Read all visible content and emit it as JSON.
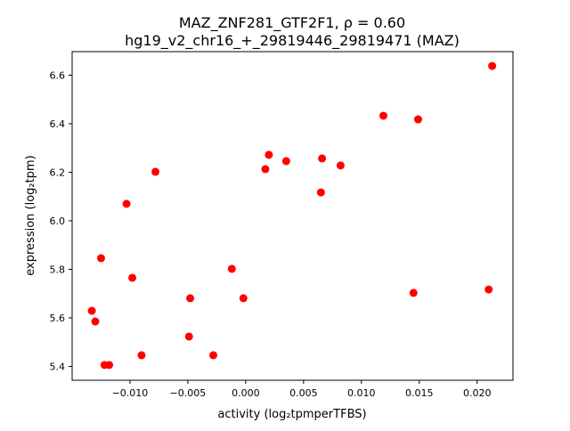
{
  "chart_data": {
    "type": "scatter",
    "title_line1": "MAZ_ZNF281_GTF2F1, ρ = 0.60",
    "title_line2": "hg19_v2_chr16_+_29819446_29819471 (MAZ)",
    "xlabel": "activity (log₂tpmperTFBS)",
    "ylabel": "expression (log₂tpm)",
    "xlim": [
      -0.015,
      0.0231
    ],
    "ylim": [
      5.343,
      6.697
    ],
    "xticks": [
      -0.01,
      -0.005,
      0.0,
      0.005,
      0.01,
      0.015,
      0.02
    ],
    "xtick_labels": [
      "−0.010",
      "−0.005",
      "0.000",
      "0.005",
      "0.010",
      "0.015",
      "0.020"
    ],
    "yticks": [
      5.4,
      5.6,
      5.8,
      6.0,
      6.2,
      6.4,
      6.6
    ],
    "ytick_labels": [
      "5.4",
      "5.6",
      "5.8",
      "6.0",
      "6.2",
      "6.4",
      "6.6"
    ],
    "grid": false,
    "marker_color": "#ff0000",
    "points": [
      {
        "x": 0.0213,
        "y": 6.638
      },
      {
        "x": 0.0119,
        "y": 6.433
      },
      {
        "x": 0.0149,
        "y": 6.418
      },
      {
        "x": 0.002,
        "y": 6.272
      },
      {
        "x": 0.0017,
        "y": 6.213
      },
      {
        "x": 0.0035,
        "y": 6.246
      },
      {
        "x": 0.0066,
        "y": 6.257
      },
      {
        "x": 0.0082,
        "y": 6.228
      },
      {
        "x": 0.0065,
        "y": 6.117
      },
      {
        "x": -0.0078,
        "y": 6.202
      },
      {
        "x": -0.0103,
        "y": 6.07
      },
      {
        "x": -0.0125,
        "y": 5.846
      },
      {
        "x": -0.0098,
        "y": 5.765
      },
      {
        "x": -0.0012,
        "y": 5.802
      },
      {
        "x": -0.0048,
        "y": 5.681
      },
      {
        "x": -0.0002,
        "y": 5.681
      },
      {
        "x": -0.0133,
        "y": 5.629
      },
      {
        "x": -0.013,
        "y": 5.585
      },
      {
        "x": -0.0049,
        "y": 5.523
      },
      {
        "x": 0.0145,
        "y": 5.703
      },
      {
        "x": 0.021,
        "y": 5.717
      },
      {
        "x": -0.009,
        "y": 5.446
      },
      {
        "x": -0.0028,
        "y": 5.446
      },
      {
        "x": -0.0122,
        "y": 5.406
      },
      {
        "x": -0.0118,
        "y": 5.406
      }
    ]
  }
}
